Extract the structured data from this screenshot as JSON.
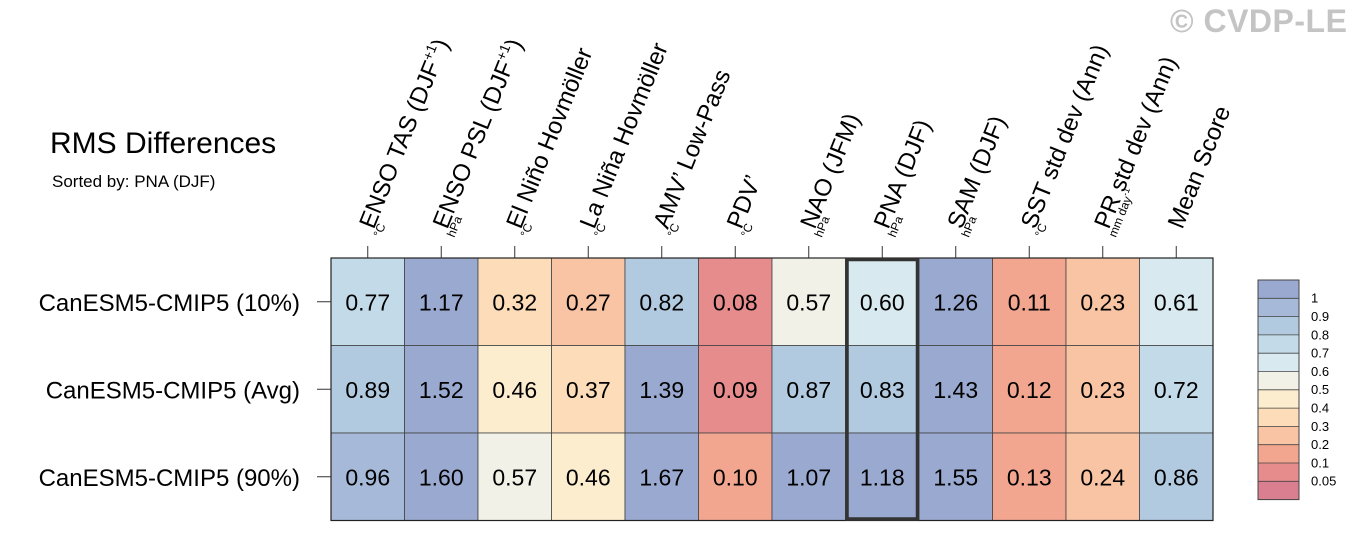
{
  "watermark": "© CVDP-LE",
  "chart_data": {
    "type": "heatmap",
    "title": "RMS Differences",
    "subtitle": "Sorted by: PNA (DJF)",
    "highlighted_column": "PNA (DJF)",
    "columns": [
      {
        "name": "ENSO TAS (DJF",
        "sup": "+1",
        "close": ")",
        "unit": "°C"
      },
      {
        "name": "ENSO PSL (DJF",
        "sup": "+1",
        "close": ")",
        "unit": "hPa"
      },
      {
        "name": "El Niño Hovmöller",
        "unit": "°C"
      },
      {
        "name": "La Niña Hovmöller",
        "unit": "°C"
      },
      {
        "name": "AMV’ Low-Pass",
        "unit": "°C"
      },
      {
        "name": "PDV’",
        "unit": "°C"
      },
      {
        "name": "NAO (JFM)",
        "unit": "hPa"
      },
      {
        "name": "PNA (DJF)",
        "unit": "hPa"
      },
      {
        "name": "SAM (DJF)",
        "unit": "hPa"
      },
      {
        "name": "SST std dev (Ann)",
        "unit": "°C"
      },
      {
        "name": "PR std dev (Ann)",
        "unit": "mm day",
        "unit_sup": "-1"
      },
      {
        "name": "Mean Score",
        "unit": ""
      }
    ],
    "rows": [
      "CanESM5-CMIP5 (10%)",
      "CanESM5-CMIP5 (Avg)",
      "CanESM5-CMIP5 (90%)"
    ],
    "values": [
      [
        "0.77",
        "1.17",
        "0.32",
        "0.27",
        "0.82",
        "0.08",
        "0.57",
        "0.60",
        "1.26",
        "0.11",
        "0.23",
        "0.61"
      ],
      [
        "0.89",
        "1.52",
        "0.46",
        "0.37",
        "1.39",
        "0.09",
        "0.87",
        "0.83",
        "1.43",
        "0.12",
        "0.23",
        "0.72"
      ],
      [
        "0.96",
        "1.60",
        "0.57",
        "0.46",
        "1.67",
        "0.10",
        "1.07",
        "1.18",
        "1.55",
        "0.13",
        "0.24",
        "0.86"
      ]
    ],
    "colorbar": {
      "levels": [
        "1",
        "0.9",
        "0.8",
        "0.7",
        "0.6",
        "0.5",
        "0.4",
        "0.3",
        "0.2",
        "0.1",
        "0.05"
      ],
      "colors": [
        "#9aa9cf",
        "#a6b9d8",
        "#b2cae0",
        "#c3dbe8",
        "#d9e9f0",
        "#f1f1e7",
        "#fcedcf",
        "#fcdcb9",
        "#f8c4a3",
        "#f2a68f",
        "#e68c8c",
        "#d97f90"
      ]
    }
  }
}
